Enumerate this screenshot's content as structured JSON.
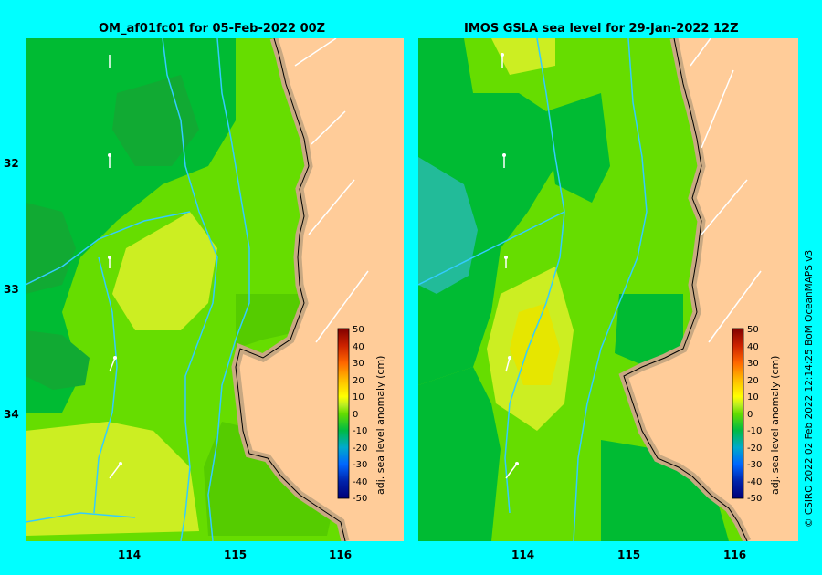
{
  "left_panel": {
    "title": "OM_af01fc01 for 05-Feb-2022 00Z",
    "colorbar": {
      "label": "adj. sea level anomaly (cm)",
      "ticks": [
        "50",
        "40",
        "30",
        "20",
        "10",
        "0",
        "-10",
        "-20",
        "-30",
        "-40",
        "-50"
      ]
    }
  },
  "right_panel": {
    "title": "IMOS GSLA sea level  for 29-Jan-2022 12Z",
    "colorbar": {
      "label": "adj. sea level anomaly (cm)",
      "ticks": [
        "50",
        "40",
        "30",
        "20",
        "10",
        "0",
        "-10",
        "-20",
        "-30",
        "-40",
        "-50"
      ]
    }
  },
  "axes": {
    "lat_ticks": [
      "32",
      "33",
      "34"
    ],
    "lon_ticks_left": [
      "114",
      "115",
      "116"
    ],
    "lon_ticks_right": [
      "114",
      "115",
      "116"
    ]
  },
  "colors": {
    "background": "#00ffff",
    "land": "#ffcc99",
    "coast_fringe": "#c8a882",
    "anomaly_+10": "#ccee22",
    "anomaly_0": "#66dd00",
    "anomaly_-10": "#00bb33",
    "anomaly_-20": "#22bb99",
    "isobath": "#33ccff"
  },
  "credit": "© CSIRO 2022   02 Feb 2022 12:14:25 BoM OceanMAPS v3"
}
